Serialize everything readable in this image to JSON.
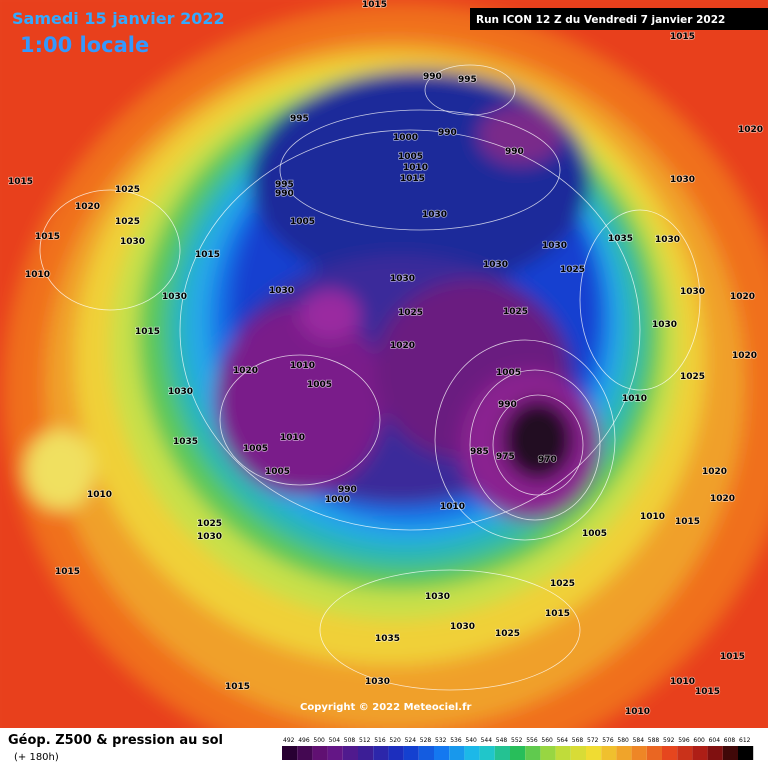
{
  "header": {
    "date": "Samedi 15 janvier 2022",
    "time": "1:00 locale",
    "run": "Run ICON 12 Z du Vendredi 7 janvier 2022"
  },
  "copyright": "Copyright © 2022 Meteociel.fr",
  "footer": {
    "title": "Géop. Z500 & pression au sol",
    "lead_time": "(+ 180h)"
  },
  "legend": {
    "values": [
      492,
      496,
      500,
      504,
      508,
      512,
      516,
      520,
      524,
      528,
      532,
      536,
      540,
      544,
      548,
      552,
      556,
      560,
      564,
      568,
      572,
      576,
      580,
      584,
      588,
      592,
      596,
      600,
      604,
      608,
      612
    ]
  },
  "isobar_labels": [
    1015,
    1015,
    1015,
    1025,
    1020,
    1025,
    1015,
    1030,
    1010,
    1015,
    1030,
    1015,
    1030,
    1035,
    1010,
    1025,
    1030,
    1015,
    1015,
    1030,
    1035,
    1030,
    1030,
    1025,
    1025,
    1015,
    1005,
    1010,
    990,
    1000,
    1005,
    1010,
    1005,
    1005,
    1020,
    1010,
    1025,
    1020,
    1025,
    1005,
    990,
    985,
    975,
    970,
    1030,
    1030,
    1030,
    1030,
    1030,
    1025,
    990,
    995,
    990,
    990,
    1000,
    1005,
    1010,
    1015,
    995,
    990,
    1005,
    995,
    1030,
    1020,
    1035,
    1030,
    1030,
    1020,
    1020,
    1030,
    1025,
    1010,
    1020,
    1020,
    1015,
    1010,
    1015,
    1010,
    1015,
    1010
  ]
}
